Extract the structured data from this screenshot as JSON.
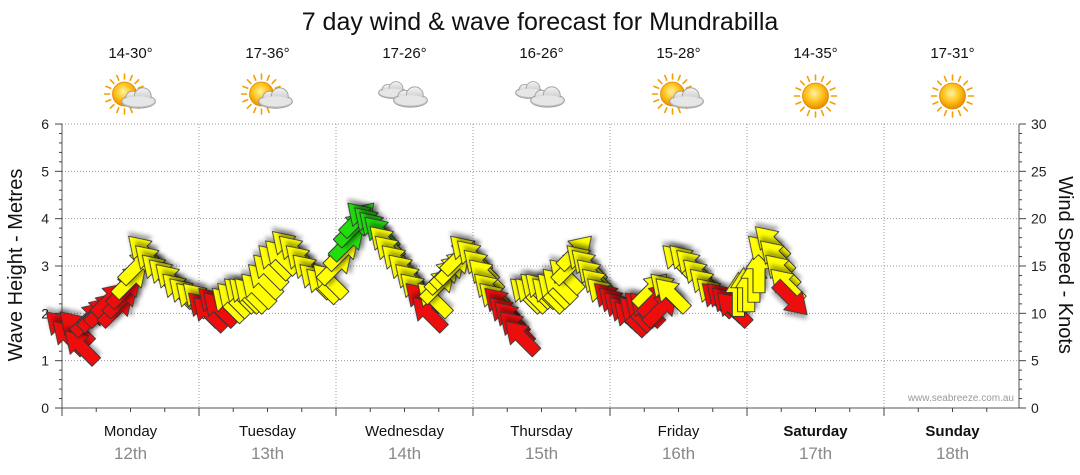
{
  "chart_data": {
    "type": "scatter",
    "title": "7 day wind & wave forecast for Mundrabilla",
    "y_left_label": "Wave Height - Metres",
    "y_right_label": "Wind Speed - Knots",
    "y_left_ticks": [
      "0",
      "1",
      "2",
      "3",
      "4",
      "5",
      "6"
    ],
    "y_right_ticks": [
      "0",
      "5",
      "10",
      "15",
      "20",
      "25",
      "30"
    ],
    "ylim_left": [
      0,
      6
    ],
    "ylim_right": [
      0,
      30
    ],
    "grid": true,
    "credit": "www.seabreeze.com.au",
    "colors": {
      "red": "#ee1111",
      "yellow": "#ffff00",
      "green": "#22dd11",
      "grid": "#999999"
    },
    "days": [
      {
        "name": "Monday",
        "date": "12th",
        "temp": "14-30°",
        "icon": "sun-cloud-icon",
        "bold": false
      },
      {
        "name": "Tuesday",
        "date": "13th",
        "temp": "17-36°",
        "icon": "sun-cloud-icon",
        "bold": false
      },
      {
        "name": "Wednesday",
        "date": "14th",
        "temp": "17-26°",
        "icon": "cloud-icon",
        "bold": false
      },
      {
        "name": "Thursday",
        "date": "15th",
        "temp": "16-26°",
        "icon": "cloud-icon",
        "bold": false
      },
      {
        "name": "Friday",
        "date": "16th",
        "temp": "15-28°",
        "icon": "sun-cloud-icon",
        "bold": false
      },
      {
        "name": "Saturday",
        "date": "17th",
        "temp": "14-35°",
        "icon": "sun-icon",
        "bold": true
      },
      {
        "name": "Sunday",
        "date": "18th",
        "temp": "17-31°",
        "icon": "sun-icon",
        "bold": true
      }
    ],
    "wind_series": [
      {
        "t": 0.0,
        "knots": 8.5,
        "dir": "SE",
        "level": "strong"
      },
      {
        "t": 0.2,
        "knots": 7.5,
        "dir": "SE",
        "level": "strong"
      },
      {
        "t": 0.4,
        "knots": 8.5,
        "dir": "SE",
        "level": "strong"
      },
      {
        "t": 0.55,
        "knots": 6.5,
        "dir": "SE",
        "level": "strong"
      },
      {
        "t": 0.8,
        "knots": 9.5,
        "dir": "SW",
        "level": "strong"
      },
      {
        "t": 1.0,
        "knots": 10.0,
        "dir": "SW",
        "level": "strong"
      },
      {
        "t": 1.2,
        "knots": 10.5,
        "dir": "SW",
        "level": "strong"
      },
      {
        "t": 1.4,
        "knots": 11.5,
        "dir": "SW",
        "level": "strong"
      },
      {
        "t": 1.6,
        "knots": 10.5,
        "dir": "SW",
        "level": "strong"
      },
      {
        "t": 1.75,
        "knots": 11.5,
        "dir": "SW",
        "level": "strong"
      },
      {
        "t": 1.85,
        "knots": 12.5,
        "dir": "SW",
        "level": "strong"
      },
      {
        "t": 2.0,
        "knots": 13.5,
        "dir": "SW",
        "level": "moderate"
      },
      {
        "t": 2.2,
        "knots": 15.0,
        "dir": "SW",
        "level": "moderate"
      },
      {
        "t": 2.4,
        "knots": 16.5,
        "dir": "SE",
        "level": "moderate"
      },
      {
        "t": 2.6,
        "knots": 15.5,
        "dir": "SE",
        "level": "moderate"
      },
      {
        "t": 2.8,
        "knots": 14.5,
        "dir": "SE",
        "level": "moderate"
      },
      {
        "t": 3.0,
        "knots": 14.0,
        "dir": "SE",
        "level": "moderate"
      },
      {
        "t": 3.2,
        "knots": 13.5,
        "dir": "SE",
        "level": "moderate"
      },
      {
        "t": 3.4,
        "knots": 12.5,
        "dir": "SE",
        "level": "moderate"
      },
      {
        "t": 3.6,
        "knots": 12.0,
        "dir": "SE",
        "level": "moderate"
      },
      {
        "t": 3.8,
        "knots": 11.5,
        "dir": "SE",
        "level": "moderate"
      },
      {
        "t": 4.0,
        "knots": 11.5,
        "dir": "SE",
        "level": "moderate"
      },
      {
        "t": 4.15,
        "knots": 10.5,
        "dir": "SE",
        "level": "strong"
      },
      {
        "t": 4.3,
        "knots": 10.0,
        "dir": "SE",
        "level": "strong"
      },
      {
        "t": 4.45,
        "knots": 11.0,
        "dir": "SE",
        "level": "strong"
      },
      {
        "t": 4.6,
        "knots": 10.5,
        "dir": "SE",
        "level": "strong"
      },
      {
        "t": 4.85,
        "knots": 11.0,
        "dir": "SE",
        "level": "moderate"
      },
      {
        "t": 5.0,
        "knots": 11.5,
        "dir": "SE",
        "level": "moderate"
      },
      {
        "t": 5.2,
        "knots": 12.0,
        "dir": "SE",
        "level": "moderate"
      },
      {
        "t": 5.35,
        "knots": 12.0,
        "dir": "SE",
        "level": "moderate"
      },
      {
        "t": 5.5,
        "knots": 12.0,
        "dir": "SE",
        "level": "moderate"
      },
      {
        "t": 5.7,
        "knots": 12.5,
        "dir": "SE",
        "level": "moderate"
      },
      {
        "t": 5.9,
        "knots": 13.5,
        "dir": "SE",
        "level": "moderate"
      },
      {
        "t": 6.05,
        "knots": 14.5,
        "dir": "SE",
        "level": "moderate"
      },
      {
        "t": 6.2,
        "knots": 15.5,
        "dir": "SE",
        "level": "moderate"
      },
      {
        "t": 6.4,
        "knots": 16.0,
        "dir": "SE",
        "level": "moderate"
      },
      {
        "t": 6.6,
        "knots": 17.0,
        "dir": "SE",
        "level": "moderate"
      },
      {
        "t": 6.8,
        "knots": 16.5,
        "dir": "SE",
        "level": "moderate"
      },
      {
        "t": 7.0,
        "knots": 15.5,
        "dir": "SE",
        "level": "moderate"
      },
      {
        "t": 7.2,
        "knots": 14.5,
        "dir": "SE",
        "level": "moderate"
      },
      {
        "t": 7.4,
        "knots": 13.5,
        "dir": "SE",
        "level": "moderate"
      },
      {
        "t": 7.6,
        "knots": 13.0,
        "dir": "SE",
        "level": "moderate"
      },
      {
        "t": 7.8,
        "knots": 13.5,
        "dir": "SE",
        "level": "moderate"
      },
      {
        "t": 8.0,
        "knots": 15.0,
        "dir": "SW",
        "level": "moderate"
      },
      {
        "t": 8.2,
        "knots": 16.5,
        "dir": "SW",
        "level": "moderate"
      },
      {
        "t": 8.35,
        "knots": 17.5,
        "dir": "SW",
        "level": "light"
      },
      {
        "t": 8.5,
        "knots": 19.0,
        "dir": "SW",
        "level": "light"
      },
      {
        "t": 8.65,
        "knots": 20.0,
        "dir": "SW",
        "level": "light"
      },
      {
        "t": 8.8,
        "knots": 20.0,
        "dir": "SE",
        "level": "light"
      },
      {
        "t": 9.0,
        "knots": 19.5,
        "dir": "SE",
        "level": "light"
      },
      {
        "t": 9.15,
        "knots": 19.0,
        "dir": "SE",
        "level": "light"
      },
      {
        "t": 9.3,
        "knots": 18.5,
        "dir": "SE",
        "level": "light"
      },
      {
        "t": 9.45,
        "knots": 17.5,
        "dir": "SE",
        "level": "moderate"
      },
      {
        "t": 9.6,
        "knots": 16.5,
        "dir": "SE",
        "level": "moderate"
      },
      {
        "t": 9.8,
        "knots": 15.5,
        "dir": "SE",
        "level": "moderate"
      },
      {
        "t": 10.0,
        "knots": 14.5,
        "dir": "SE",
        "level": "moderate"
      },
      {
        "t": 10.2,
        "knots": 13.5,
        "dir": "SE",
        "level": "moderate"
      },
      {
        "t": 10.35,
        "knots": 12.5,
        "dir": "SE",
        "level": "moderate"
      },
      {
        "t": 10.5,
        "knots": 11.5,
        "dir": "SE",
        "level": "strong"
      },
      {
        "t": 10.7,
        "knots": 10.0,
        "dir": "SE",
        "level": "strong"
      },
      {
        "t": 10.85,
        "knots": 11.5,
        "dir": "SE",
        "level": "moderate"
      },
      {
        "t": 11.0,
        "knots": 13.0,
        "dir": "SW",
        "level": "moderate"
      },
      {
        "t": 11.15,
        "knots": 14.0,
        "dir": "SW",
        "level": "moderate"
      },
      {
        "t": 11.3,
        "knots": 14.5,
        "dir": "SW",
        "level": "moderate"
      },
      {
        "t": 11.45,
        "knots": 15.0,
        "dir": "SW",
        "level": "moderate"
      },
      {
        "t": 11.6,
        "knots": 16.0,
        "dir": "SW",
        "level": "moderate"
      },
      {
        "t": 11.8,
        "knots": 16.5,
        "dir": "SE",
        "level": "moderate"
      },
      {
        "t": 12.0,
        "knots": 16.0,
        "dir": "SE",
        "level": "moderate"
      },
      {
        "t": 12.2,
        "knots": 15.0,
        "dir": "SE",
        "level": "moderate"
      },
      {
        "t": 12.35,
        "knots": 14.0,
        "dir": "SE",
        "level": "moderate"
      },
      {
        "t": 12.5,
        "knots": 12.5,
        "dir": "SE",
        "level": "moderate"
      },
      {
        "t": 12.65,
        "knots": 11.5,
        "dir": "SE",
        "level": "moderate"
      },
      {
        "t": 12.8,
        "knots": 11.0,
        "dir": "SE",
        "level": "strong"
      },
      {
        "t": 12.95,
        "knots": 10.0,
        "dir": "SE",
        "level": "strong"
      },
      {
        "t": 13.1,
        "knots": 9.5,
        "dir": "SE",
        "level": "strong"
      },
      {
        "t": 13.25,
        "knots": 8.5,
        "dir": "SE",
        "level": "strong"
      },
      {
        "t": 13.4,
        "knots": 7.5,
        "dir": "SE",
        "level": "strong"
      },
      {
        "t": 13.55,
        "knots": 12.0,
        "dir": "SE",
        "level": "moderate"
      },
      {
        "t": 13.7,
        "knots": 12.0,
        "dir": "SE",
        "level": "moderate"
      },
      {
        "t": 13.85,
        "knots": 12.5,
        "dir": "SE",
        "level": "moderate"
      },
      {
        "t": 14.0,
        "knots": 12.5,
        "dir": "SE",
        "level": "moderate"
      },
      {
        "t": 14.2,
        "knots": 12.0,
        "dir": "SE",
        "level": "moderate"
      },
      {
        "t": 14.35,
        "knots": 12.5,
        "dir": "SE",
        "level": "moderate"
      },
      {
        "t": 14.5,
        "knots": 13.0,
        "dir": "SE",
        "level": "moderate"
      },
      {
        "t": 14.7,
        "knots": 14.0,
        "dir": "SE",
        "level": "moderate"
      },
      {
        "t": 14.85,
        "knots": 15.0,
        "dir": "SW",
        "level": "moderate"
      },
      {
        "t": 15.0,
        "knots": 16.5,
        "dir": "SW",
        "level": "moderate"
      },
      {
        "t": 15.2,
        "knots": 15.5,
        "dir": "SE",
        "level": "moderate"
      },
      {
        "t": 15.35,
        "knots": 15.0,
        "dir": "SE",
        "level": "moderate"
      },
      {
        "t": 15.5,
        "knots": 14.0,
        "dir": "SE",
        "level": "moderate"
      },
      {
        "t": 15.65,
        "knots": 13.0,
        "dir": "SE",
        "level": "moderate"
      },
      {
        "t": 15.8,
        "knots": 12.0,
        "dir": "SE",
        "level": "moderate"
      },
      {
        "t": 16.0,
        "knots": 11.5,
        "dir": "SE",
        "level": "strong"
      },
      {
        "t": 16.15,
        "knots": 11.0,
        "dir": "SE",
        "level": "strong"
      },
      {
        "t": 16.3,
        "knots": 10.5,
        "dir": "SE",
        "level": "strong"
      },
      {
        "t": 16.45,
        "knots": 10.0,
        "dir": "SE",
        "level": "strong"
      },
      {
        "t": 16.6,
        "knots": 9.5,
        "dir": "SE",
        "level": "strong"
      },
      {
        "t": 16.75,
        "knots": 10.0,
        "dir": "SE",
        "level": "strong"
      },
      {
        "t": 16.9,
        "knots": 10.5,
        "dir": "SE",
        "level": "strong"
      },
      {
        "t": 17.05,
        "knots": 10.5,
        "dir": "SE",
        "level": "strong"
      },
      {
        "t": 17.2,
        "knots": 12.5,
        "dir": "SW",
        "level": "moderate"
      },
      {
        "t": 17.35,
        "knots": 11.5,
        "dir": "SW",
        "level": "strong"
      },
      {
        "t": 17.5,
        "knots": 10.5,
        "dir": "SW",
        "level": "strong"
      },
      {
        "t": 17.65,
        "knots": 12.5,
        "dir": "SE",
        "level": "moderate"
      },
      {
        "t": 17.8,
        "knots": 12.0,
        "dir": "SE",
        "level": "moderate"
      },
      {
        "t": 18.0,
        "knots": 15.5,
        "dir": "SE",
        "level": "moderate"
      },
      {
        "t": 18.2,
        "knots": 15.5,
        "dir": "SE",
        "level": "moderate"
      },
      {
        "t": 18.4,
        "knots": 15.0,
        "dir": "SE",
        "level": "moderate"
      },
      {
        "t": 18.6,
        "knots": 14.0,
        "dir": "SE",
        "level": "moderate"
      },
      {
        "t": 18.8,
        "knots": 13.0,
        "dir": "SE",
        "level": "moderate"
      },
      {
        "t": 19.0,
        "knots": 12.0,
        "dir": "SE",
        "level": "moderate"
      },
      {
        "t": 19.15,
        "knots": 11.5,
        "dir": "SE",
        "level": "strong"
      },
      {
        "t": 19.3,
        "knots": 11.5,
        "dir": "SE",
        "level": "strong"
      },
      {
        "t": 19.45,
        "knots": 11.0,
        "dir": "SE",
        "level": "strong"
      },
      {
        "t": 19.6,
        "knots": 10.5,
        "dir": "SE",
        "level": "strong"
      },
      {
        "t": 19.75,
        "knots": 12.0,
        "dir": "S",
        "level": "moderate"
      },
      {
        "t": 19.9,
        "knots": 12.5,
        "dir": "S",
        "level": "moderate"
      },
      {
        "t": 20.05,
        "knots": 12.5,
        "dir": "S",
        "level": "moderate"
      },
      {
        "t": 20.2,
        "knots": 13.5,
        "dir": "S",
        "level": "moderate"
      },
      {
        "t": 20.35,
        "knots": 14.5,
        "dir": "S",
        "level": "moderate"
      },
      {
        "t": 20.5,
        "knots": 16.5,
        "dir": "SE",
        "level": "moderate"
      },
      {
        "t": 20.7,
        "knots": 17.5,
        "dir": "SE",
        "level": "moderate"
      },
      {
        "t": 20.85,
        "knots": 16.0,
        "dir": "SE",
        "level": "moderate"
      },
      {
        "t": 21.0,
        "knots": 14.5,
        "dir": "SE",
        "level": "moderate"
      },
      {
        "t": 21.15,
        "knots": 13.0,
        "dir": "SE",
        "level": "moderate"
      },
      {
        "t": 21.3,
        "knots": 11.5,
        "dir": "NW",
        "level": "strong"
      }
    ]
  }
}
